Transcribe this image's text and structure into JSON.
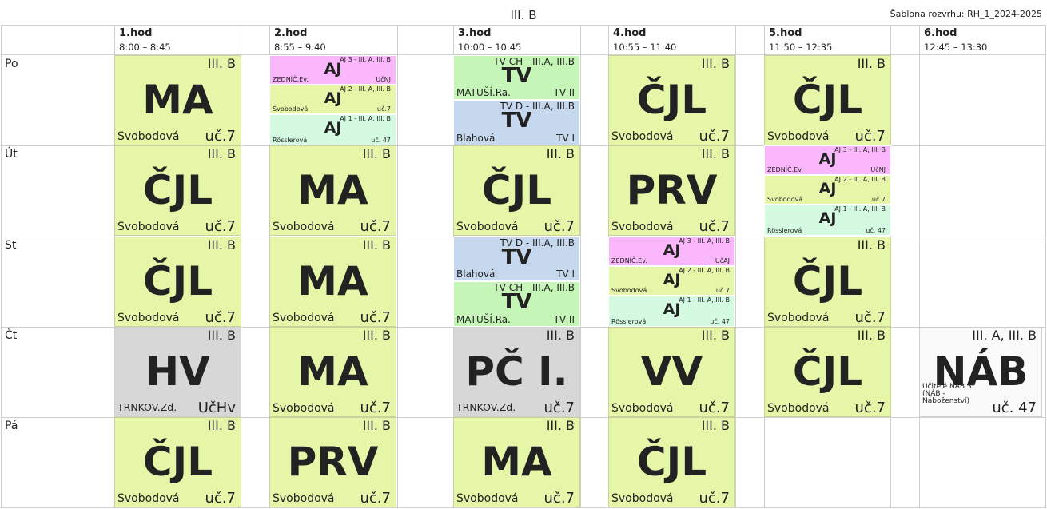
{
  "header": {
    "title": "III. B",
    "template": "Šablona rozvrhu: RH_1_2024-2025"
  },
  "periods": [
    {
      "num": "1.hod",
      "time": "8:00 – 8:45"
    },
    {
      "num": "2.hod",
      "time": "8:55 – 9:40"
    },
    {
      "num": "3.hod",
      "time": "10:00 – 10:45"
    },
    {
      "num": "4.hod",
      "time": "10:55 – 11:40"
    },
    {
      "num": "5.hod",
      "time": "11:50 – 12:35"
    },
    {
      "num": "6.hod",
      "time": "12:45 – 13:30"
    }
  ],
  "days": [
    "Po",
    "Út",
    "St",
    "Čt",
    "Pá"
  ],
  "colors": {
    "lesson": "#e5f6a8",
    "gray": "#d7d7d7",
    "white": "#fafafa",
    "aj3": "#fab7fb",
    "aj1": "#d4fbe2",
    "tv_ch": "#c6f6b7",
    "tv_d": "#c6d8ee",
    "text": "#222222",
    "grid": "#cfcfcf"
  },
  "lessons": {
    "po_1": {
      "cls": "III. B",
      "subject": "MA",
      "teacher": "Svobodová",
      "room": "uč.7"
    },
    "po_2": [
      {
        "cls": "AJ 3 - III. A, III. B",
        "subject": "AJ",
        "teacher": "ZEDNÍČ.Ev.",
        "room": "UčNJ"
      },
      {
        "cls": "AJ 2 - III. A, III. B",
        "subject": "AJ",
        "teacher": "Svobodová",
        "room": "uč.7"
      },
      {
        "cls": "AJ 1 - III. A, III. B",
        "subject": "AJ",
        "teacher": "Rösslerová",
        "room": "uč. 47"
      }
    ],
    "po_3": [
      {
        "cls": "TV CH - III.A, III.B",
        "subject": "TV",
        "teacher": "MATUŠÍ.Ra.",
        "room": "TV II"
      },
      {
        "cls": "TV D - III.A, III.B",
        "subject": "TV",
        "teacher": "Blahová",
        "room": "TV I"
      }
    ],
    "po_4": {
      "cls": "III. B",
      "subject": "ČJL",
      "teacher": "Svobodová",
      "room": "uč.7"
    },
    "po_5": {
      "cls": "III. B",
      "subject": "ČJL",
      "teacher": "Svobodová",
      "room": "uč.7"
    },
    "ut_1": {
      "cls": "III. B",
      "subject": "ČJL",
      "teacher": "Svobodová",
      "room": "uč.7"
    },
    "ut_2": {
      "cls": "III. B",
      "subject": "MA",
      "teacher": "Svobodová",
      "room": "uč.7"
    },
    "ut_3": {
      "cls": "III. B",
      "subject": "ČJL",
      "teacher": "Svobodová",
      "room": "uč.7"
    },
    "ut_4": {
      "cls": "III. B",
      "subject": "PRV",
      "teacher": "Svobodová",
      "room": "uč.7"
    },
    "ut_5": [
      {
        "cls": "AJ 3 - III. A, III. B",
        "subject": "AJ",
        "teacher": "ZEDNÍČ.Ev.",
        "room": "UčNJ"
      },
      {
        "cls": "AJ 2 - III. A, III. B",
        "subject": "AJ",
        "teacher": "Svobodová",
        "room": "uč.7"
      },
      {
        "cls": "AJ 1 - III. A, III. B",
        "subject": "AJ",
        "teacher": "Rösslerová",
        "room": "uč. 47"
      }
    ],
    "st_1": {
      "cls": "III. B",
      "subject": "ČJL",
      "teacher": "Svobodová",
      "room": "uč.7"
    },
    "st_2": {
      "cls": "III. B",
      "subject": "MA",
      "teacher": "Svobodová",
      "room": "uč.7"
    },
    "st_3": [
      {
        "cls": "TV D - III.A, III.B",
        "subject": "TV",
        "teacher": "Blahová",
        "room": "TV I"
      },
      {
        "cls": "TV CH - III.A, III.B",
        "subject": "TV",
        "teacher": "MATUŠÍ.Ra.",
        "room": "TV II"
      }
    ],
    "st_4": [
      {
        "cls": "AJ 3 - III. A, III. B",
        "subject": "AJ",
        "teacher": "ZEDNÍČ.Ev.",
        "room": "UčAJ"
      },
      {
        "cls": "AJ 2 - III. A, III. B",
        "subject": "AJ",
        "teacher": "Svobodová",
        "room": "uč.7"
      },
      {
        "cls": "AJ 1 - III. A, III. B",
        "subject": "AJ",
        "teacher": "Rösslerová",
        "room": "uč. 47"
      }
    ],
    "st_5": {
      "cls": "III. B",
      "subject": "ČJL",
      "teacher": "Svobodová",
      "room": "uč.7"
    },
    "ct_1": {
      "cls": "III. B",
      "subject": "HV",
      "teacher": "TRNKOV.Zd.",
      "room": "UčHv"
    },
    "ct_2": {
      "cls": "III. B",
      "subject": "MA",
      "teacher": "Svobodová",
      "room": "uč.7"
    },
    "ct_3": {
      "cls": "III. B",
      "subject": "PČ I.",
      "teacher": "TRNKOV.Zd.",
      "room": "uč.7"
    },
    "ct_4": {
      "cls": "III. B",
      "subject": "VV",
      "teacher": "Svobodová",
      "room": "uč.7"
    },
    "ct_5": {
      "cls": "III. B",
      "subject": "ČJL",
      "teacher": "Svobodová",
      "room": "uč.7"
    },
    "ct_6": {
      "cls": "III. A, III. B",
      "subject": "NÁB",
      "teacher": "Učitelé NÁB 3  (NÁB - Náboženství)",
      "room": "uč. 47"
    },
    "pa_1": {
      "cls": "III. B",
      "subject": "ČJL",
      "teacher": "Svobodová",
      "room": "uč.7"
    },
    "pa_2": {
      "cls": "III. B",
      "subject": "PRV",
      "teacher": "Svobodová",
      "room": "uč.7"
    },
    "pa_3": {
      "cls": "III. B",
      "subject": "MA",
      "teacher": "Svobodová",
      "room": "uč.7"
    },
    "pa_4": {
      "cls": "III. B",
      "subject": "ČJL",
      "teacher": "Svobodová",
      "room": "uč.7"
    }
  }
}
